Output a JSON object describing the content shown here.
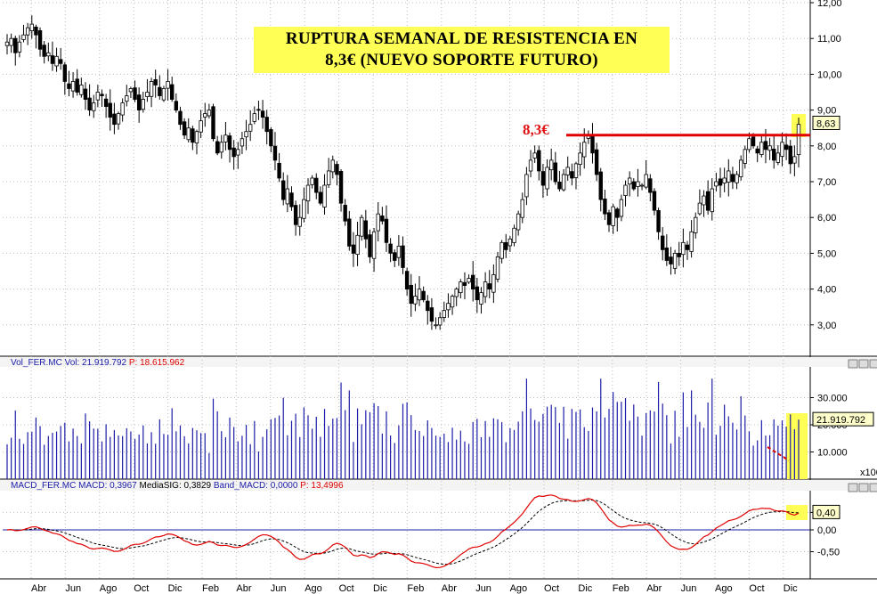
{
  "title": {
    "line1": "RUPTURA SEMANAL DE RESISTENCIA EN",
    "line2": "8,3€ (NUEVO SOPORTE FUTURO)"
  },
  "annotation": "8,3€",
  "colors": {
    "candle": "#000000",
    "resistance": "#e00000",
    "volume": "#1c1ca8",
    "macd": "#e00000",
    "signal": "#000000",
    "zero": "#1c1ca8",
    "highlight": "#ffff55"
  },
  "chart_data": [
    {
      "type": "candlestick",
      "panel": "price",
      "ylim": [
        2.5,
        12.0
      ],
      "y_ticks": [
        "12,00",
        "11,00",
        "10,00",
        "9,00",
        "8,00",
        "7,00",
        "6,00",
        "5,00",
        "4,00",
        "3,00"
      ],
      "y_tick_values": [
        12,
        11,
        10,
        9,
        8,
        7,
        6,
        5,
        4,
        3
      ],
      "last_value_label": "8,63",
      "resistance": 8.3,
      "weekly_closes": [
        10.9,
        11.0,
        10.6,
        10.9,
        11.1,
        11.3,
        11.4,
        11.1,
        10.7,
        10.5,
        10.6,
        10.3,
        10.5,
        10.3,
        9.8,
        9.6,
        9.8,
        9.5,
        9.7,
        9.3,
        9.0,
        9.2,
        9.5,
        9.4,
        9.1,
        8.8,
        8.6,
        8.9,
        9.2,
        9.4,
        9.6,
        9.3,
        9.0,
        9.3,
        9.5,
        9.8,
        9.7,
        9.4,
        9.6,
        9.8,
        9.3,
        9.0,
        8.6,
        8.3,
        8.5,
        8.1,
        8.4,
        8.7,
        8.9,
        9.0,
        8.2,
        7.8,
        8.1,
        8.3,
        7.9,
        7.7,
        7.9,
        8.2,
        8.4,
        8.6,
        8.9,
        9.0,
        8.8,
        8.4,
        8.0,
        7.6,
        7.1,
        6.5,
        6.8,
        6.3,
        5.8,
        6.0,
        6.5,
        6.9,
        7.1,
        6.7,
        6.4,
        6.9,
        7.3,
        7.6,
        7.2,
        6.4,
        5.9,
        5.2,
        5.0,
        5.5,
        6.0,
        5.4,
        4.9,
        5.6,
        6.1,
        5.9,
        5.3,
        5.0,
        4.8,
        5.2,
        4.6,
        4.0,
        3.6,
        3.8,
        4.0,
        3.7,
        3.4,
        3.1,
        3.0,
        3.2,
        3.4,
        3.6,
        3.8,
        4.0,
        4.2,
        4.1,
        4.3,
        4.0,
        3.7,
        3.9,
        4.2,
        4.0,
        4.4,
        4.9,
        5.3,
        5.1,
        5.4,
        5.7,
        6.1,
        6.5,
        7.2,
        7.6,
        7.8,
        7.3,
        6.9,
        7.4,
        7.6,
        7.0,
        6.8,
        7.2,
        7.4,
        7.1,
        7.5,
        7.8,
        8.1,
        8.3,
        7.8,
        7.2,
        6.5,
        6.1,
        5.8,
        6.3,
        6.0,
        6.5,
        6.9,
        7.1,
        6.8,
        7.0,
        6.9,
        7.2,
        6.7,
        6.2,
        5.6,
        5.1,
        4.8,
        4.7,
        5.0,
        4.9,
        5.3,
        5.1,
        5.6,
        6.0,
        6.4,
        6.6,
        6.2,
        6.8,
        7.0,
        6.9,
        7.1,
        7.3,
        7.0,
        7.2,
        7.6,
        7.9,
        8.2,
        8.0,
        7.8,
        8.1,
        7.9,
        8.0,
        7.6,
        7.8,
        8.1,
        7.9,
        7.5,
        7.7,
        8.6
      ]
    },
    {
      "type": "bar",
      "panel": "volume",
      "header": {
        "series": "Vol_FER.MC",
        "vol_label": "Vol:",
        "vol_value": "21.919.792",
        "p_label": "P:",
        "p_value": "18.615.962"
      },
      "ylim": [
        0,
        40000
      ],
      "y_ticks": [
        "30.000",
        "20.000",
        "10.000"
      ],
      "y_tick_values": [
        30000,
        20000,
        10000
      ],
      "last_value_label": "21.919.792",
      "unit_label": "x100"
    },
    {
      "type": "line",
      "panel": "macd",
      "header": {
        "series": "MACD_FER.MC",
        "macd_label": "MACD:",
        "macd_value": "0,3967",
        "sig_label": "MediaSIG:",
        "sig_value": "0,3829",
        "band_label": "Band_MACD:",
        "band_value": "0,0000",
        "p_label": "P:",
        "p_value": "13,4996"
      },
      "ylim": [
        -1.0,
        0.85
      ],
      "y_ticks": [
        "0,40",
        "0,00",
        "-0,50"
      ],
      "y_tick_values": [
        0.4,
        0.0,
        -0.5
      ],
      "last_value_label": "0,40",
      "series": [
        {
          "name": "MACD"
        },
        {
          "name": "MediaSIG"
        }
      ]
    }
  ],
  "x_axis": {
    "labels": [
      "Abr",
      "Jun",
      "Ago",
      "Oct",
      "Dic",
      "Feb",
      "Abr",
      "Jun",
      "Ago",
      "Oct",
      "Dic",
      "Feb",
      "Abr",
      "Jun",
      "Ago",
      "Oct",
      "Dic",
      "Feb",
      "Abr",
      "Jun",
      "Ago",
      "Oct",
      "Dic"
    ]
  }
}
